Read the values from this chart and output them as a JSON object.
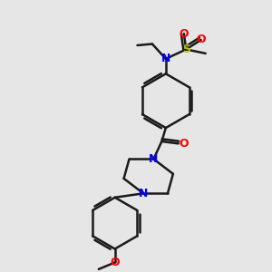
{
  "background_color": "#e6e6e6",
  "bond_color": "#1a1a1a",
  "N_color": "#0000ff",
  "O_color": "#ff0000",
  "S_color": "#bbbb00",
  "line_width": 1.8,
  "fig_size": [
    3.0,
    3.0
  ],
  "dpi": 100,
  "xlim": [
    0,
    10
  ],
  "ylim": [
    0,
    10
  ]
}
